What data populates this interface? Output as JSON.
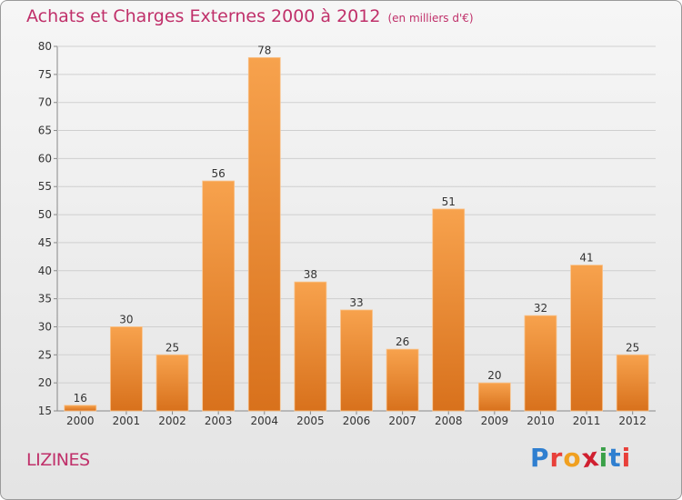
{
  "title": "Achats et Charges Externes 2000 à 2012",
  "subtitle": "(en milliers d'€)",
  "place": "LIZINES",
  "logo": {
    "letters": [
      "P",
      "r",
      "o",
      "x",
      "i",
      "t",
      "i"
    ],
    "colors": [
      "#2f7fd0",
      "#e8403a",
      "#f0a020",
      "#d02030",
      "#3aa048",
      "#2f7fd0",
      "#e8403a"
    ]
  },
  "colors": {
    "bar_light": "#f7a24d",
    "bar_dark": "#d8711c",
    "grid": "#cfcfcf",
    "title": "#c0306a"
  },
  "chart_data": {
    "type": "bar",
    "categories": [
      "2000",
      "2001",
      "2002",
      "2003",
      "2004",
      "2005",
      "2006",
      "2007",
      "2008",
      "2009",
      "2010",
      "2011",
      "2012"
    ],
    "values": [
      16,
      30,
      25,
      56,
      78,
      38,
      33,
      26,
      51,
      20,
      32,
      41,
      25
    ],
    "ylim": [
      15,
      80
    ],
    "yticks": [
      15,
      20,
      25,
      30,
      35,
      40,
      45,
      50,
      55,
      60,
      65,
      70,
      75,
      80
    ],
    "grid": true,
    "legend": "none"
  }
}
